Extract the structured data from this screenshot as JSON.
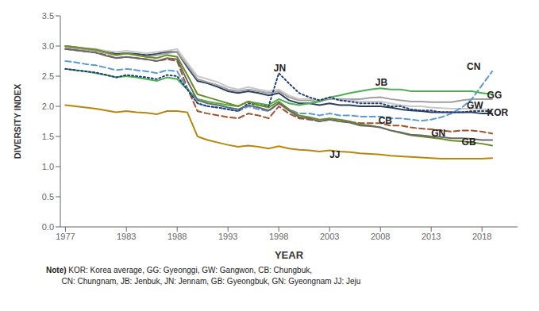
{
  "chart_data": {
    "type": "line",
    "x": [
      1977,
      1978,
      1979,
      1980,
      1981,
      1982,
      1983,
      1984,
      1985,
      1986,
      1987,
      1988,
      1989,
      1990,
      1991,
      1992,
      1993,
      1994,
      1995,
      1996,
      1997,
      1998,
      1999,
      2000,
      2001,
      2002,
      2003,
      2004,
      2005,
      2006,
      2007,
      2008,
      2009,
      2010,
      2011,
      2012,
      2013,
      2014,
      2015,
      2016,
      2017,
      2018,
      2019
    ],
    "series": [
      {
        "name": "KOR",
        "color": "#2B3F5C",
        "line_style": "solid",
        "values": [
          3.0,
          2.98,
          2.95,
          2.93,
          2.9,
          2.87,
          2.88,
          2.87,
          2.85,
          2.87,
          2.9,
          2.9,
          2.65,
          2.42,
          2.38,
          2.32,
          2.25,
          2.22,
          2.25,
          2.22,
          2.18,
          2.22,
          2.1,
          2.05,
          2.05,
          2.02,
          2.05,
          2.02,
          2.02,
          2.0,
          2.0,
          2.0,
          1.98,
          1.95,
          1.93,
          1.92,
          1.9,
          1.9,
          1.9,
          1.9,
          1.9,
          1.88,
          1.88
        ]
      },
      {
        "name": "GG",
        "color": "#A0A0A0",
        "line_style": "solid",
        "values": [
          2.98,
          2.96,
          2.94,
          2.92,
          2.88,
          2.85,
          2.87,
          2.85,
          2.82,
          2.85,
          2.88,
          2.9,
          2.68,
          2.45,
          2.4,
          2.35,
          2.28,
          2.25,
          2.28,
          2.25,
          2.22,
          2.25,
          2.15,
          2.1,
          2.1,
          2.08,
          2.12,
          2.12,
          2.12,
          2.12,
          2.14,
          2.15,
          2.12,
          2.1,
          2.08,
          2.08,
          2.07,
          2.07,
          2.07,
          2.1,
          2.12,
          2.12,
          2.12
        ]
      },
      {
        "name": "GW",
        "color": "#C8C8C8",
        "line_style": "solid",
        "values": [
          3.0,
          2.98,
          2.96,
          2.95,
          2.92,
          2.9,
          2.92,
          2.9,
          2.88,
          2.9,
          2.92,
          2.95,
          2.72,
          2.5,
          2.45,
          2.4,
          2.32,
          2.28,
          2.32,
          2.28,
          2.25,
          2.28,
          2.18,
          2.12,
          2.12,
          2.1,
          2.14,
          2.1,
          2.1,
          2.08,
          2.08,
          2.08,
          2.05,
          2.02,
          2.0,
          2.0,
          1.98,
          1.97,
          1.96,
          1.96,
          1.96,
          1.95,
          1.95
        ]
      },
      {
        "name": "CB",
        "color": "#A0522D",
        "line_style": "dashed",
        "values": [
          2.95,
          2.93,
          2.91,
          2.89,
          2.85,
          2.8,
          2.82,
          2.8,
          2.78,
          2.75,
          2.78,
          2.75,
          2.3,
          1.92,
          1.88,
          1.85,
          1.82,
          1.8,
          1.88,
          1.85,
          1.8,
          2.0,
          1.88,
          1.8,
          1.78,
          1.75,
          1.78,
          1.75,
          1.74,
          1.72,
          1.72,
          1.72,
          1.68,
          1.68,
          1.65,
          1.63,
          1.62,
          1.6,
          1.58,
          1.6,
          1.6,
          1.58,
          1.55
        ]
      },
      {
        "name": "CN",
        "color": "#5B9BD5",
        "line_style": "dashed",
        "values": [
          2.75,
          2.73,
          2.7,
          2.68,
          2.64,
          2.6,
          2.62,
          2.6,
          2.58,
          2.55,
          2.6,
          2.58,
          2.3,
          2.05,
          2.0,
          1.98,
          1.95,
          1.92,
          2.0,
          1.95,
          1.92,
          2.05,
          1.95,
          1.88,
          1.88,
          1.85,
          1.88,
          1.85,
          1.85,
          1.83,
          1.83,
          1.83,
          1.8,
          1.8,
          1.78,
          1.76,
          1.78,
          1.82,
          1.88,
          1.98,
          2.12,
          2.35,
          2.58
        ]
      },
      {
        "name": "JB",
        "color": "#4CAF50",
        "line_style": "solid",
        "values": [
          2.62,
          2.6,
          2.58,
          2.55,
          2.52,
          2.48,
          2.5,
          2.48,
          2.45,
          2.42,
          2.48,
          2.45,
          2.28,
          2.12,
          2.08,
          2.05,
          2.02,
          2.0,
          2.08,
          2.05,
          2.02,
          2.12,
          2.05,
          2.02,
          2.05,
          2.08,
          2.15,
          2.18,
          2.22,
          2.25,
          2.28,
          2.3,
          2.28,
          2.28,
          2.25,
          2.25,
          2.25,
          2.25,
          2.25,
          2.25,
          2.25,
          2.22,
          2.2
        ]
      },
      {
        "name": "JN",
        "color": "#1F3D7A",
        "line_style": "dotted",
        "values": [
          2.62,
          2.6,
          2.58,
          2.56,
          2.52,
          2.48,
          2.52,
          2.5,
          2.48,
          2.45,
          2.52,
          2.5,
          2.28,
          2.05,
          2.0,
          1.98,
          1.95,
          1.92,
          2.05,
          2.02,
          2.0,
          2.55,
          2.38,
          2.22,
          2.15,
          2.1,
          2.15,
          2.1,
          2.08,
          2.05,
          2.05,
          2.05,
          2.0,
          2.0,
          1.95,
          1.93,
          1.93,
          1.9,
          1.9,
          1.9,
          1.92,
          1.92,
          1.92
        ]
      },
      {
        "name": "GB",
        "color": "#6B8E23",
        "line_style": "solid",
        "values": [
          3.0,
          2.98,
          2.96,
          2.94,
          2.9,
          2.85,
          2.88,
          2.85,
          2.82,
          2.8,
          2.85,
          2.82,
          2.52,
          2.2,
          2.15,
          2.1,
          2.05,
          2.0,
          2.08,
          2.02,
          1.98,
          2.08,
          1.95,
          1.85,
          1.82,
          1.78,
          1.8,
          1.78,
          1.75,
          1.7,
          1.68,
          1.65,
          1.6,
          1.56,
          1.52,
          1.5,
          1.48,
          1.46,
          1.43,
          1.42,
          1.4,
          1.38,
          1.35
        ]
      },
      {
        "name": "GN",
        "color": "#696969",
        "line_style": "solid",
        "values": [
          2.95,
          2.93,
          2.91,
          2.89,
          2.84,
          2.8,
          2.82,
          2.8,
          2.78,
          2.75,
          2.8,
          2.78,
          2.42,
          2.1,
          2.05,
          2.02,
          1.98,
          1.95,
          2.02,
          1.98,
          1.93,
          2.05,
          1.93,
          1.82,
          1.8,
          1.75,
          1.78,
          1.75,
          1.73,
          1.68,
          1.67,
          1.65,
          1.6,
          1.57,
          1.53,
          1.52,
          1.5,
          1.49,
          1.47,
          1.47,
          1.46,
          1.44,
          1.44
        ]
      },
      {
        "name": "JJ",
        "color": "#B8860B",
        "line_style": "solid",
        "values": [
          2.02,
          2.0,
          1.98,
          1.96,
          1.93,
          1.9,
          1.92,
          1.9,
          1.89,
          1.87,
          1.92,
          1.92,
          1.9,
          1.5,
          1.44,
          1.4,
          1.36,
          1.33,
          1.35,
          1.33,
          1.3,
          1.34,
          1.3,
          1.28,
          1.27,
          1.25,
          1.27,
          1.25,
          1.24,
          1.22,
          1.21,
          1.2,
          1.18,
          1.17,
          1.16,
          1.15,
          1.14,
          1.13,
          1.13,
          1.13,
          1.13,
          1.13,
          1.14
        ]
      }
    ],
    "annotations": [
      {
        "label": "JN",
        "x": 1997.5,
        "y": 2.62
      },
      {
        "label": "JB",
        "x": 2007.5,
        "y": 2.38
      },
      {
        "label": "CN",
        "x": 2016.5,
        "y": 2.65
      },
      {
        "label": "GG",
        "x": 2018.5,
        "y": 2.17
      },
      {
        "label": "GW",
        "x": 2016.5,
        "y": 2.0
      },
      {
        "label": "KOR",
        "x": 2018.5,
        "y": 1.88
      },
      {
        "label": "CB",
        "x": 2007.8,
        "y": 1.75
      },
      {
        "label": "GN",
        "x": 2013.0,
        "y": 1.54
      },
      {
        "label": "GB",
        "x": 2016.0,
        "y": 1.4
      },
      {
        "label": "JJ",
        "x": 2003.0,
        "y": 1.18
      }
    ],
    "x_label": "YEAR",
    "y_label": "DIVERSITY INDEX",
    "xlim": [
      1976.5,
      2021.5
    ],
    "xticks": [
      1977,
      1983,
      1988,
      1993,
      1998,
      2003,
      2008,
      2013,
      2018
    ],
    "ylim": [
      0,
      3.5
    ],
    "yticks": [
      {
        "value": 0,
        "label": "0.0"
      },
      0.5,
      {
        "value": 1,
        "label": "1.0"
      },
      1.5,
      {
        "value": 2,
        "label": "2.0"
      },
      2.5,
      {
        "value": 3,
        "label": "3.0"
      },
      3.5
    ],
    "grid": false,
    "notes": [
      "Note)",
      " KOR: Korea average, GG: Gyeonggi, GW: Gangwon, CB: Chungbuk,",
      "       CN: Chungnam, JB: Jenbuk, JN: Jennam, GB: Gyeongbuk, GN: Gyeongnam JJ: Jeju"
    ]
  }
}
